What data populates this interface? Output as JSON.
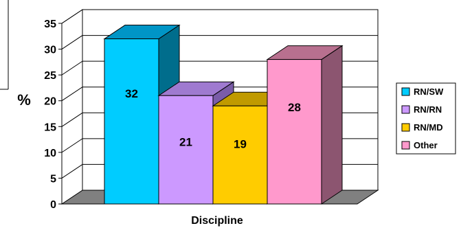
{
  "chart_data": {
    "type": "bar",
    "style": "3d-column",
    "categories": [
      "RN/SW",
      "RN/RN",
      "RN/MD",
      "Other"
    ],
    "values": [
      32,
      21,
      19,
      28
    ],
    "title": "",
    "xlabel": "Discipline",
    "ylabel": "%",
    "ylim": [
      0,
      35
    ],
    "yticks": [
      0,
      5,
      10,
      15,
      20,
      25,
      30,
      35
    ],
    "grid": true,
    "legend": "right",
    "colors": [
      "#00ccff",
      "#cc99ff",
      "#ffcc00",
      "#ff99cc"
    ],
    "side_colors": [
      "#006d8c",
      "#7a5ca8",
      "#8c7000",
      "#8c5570"
    ],
    "top_colors": [
      "#0095c6",
      "#9f7ad0",
      "#c09a00",
      "#b8708f"
    ]
  }
}
